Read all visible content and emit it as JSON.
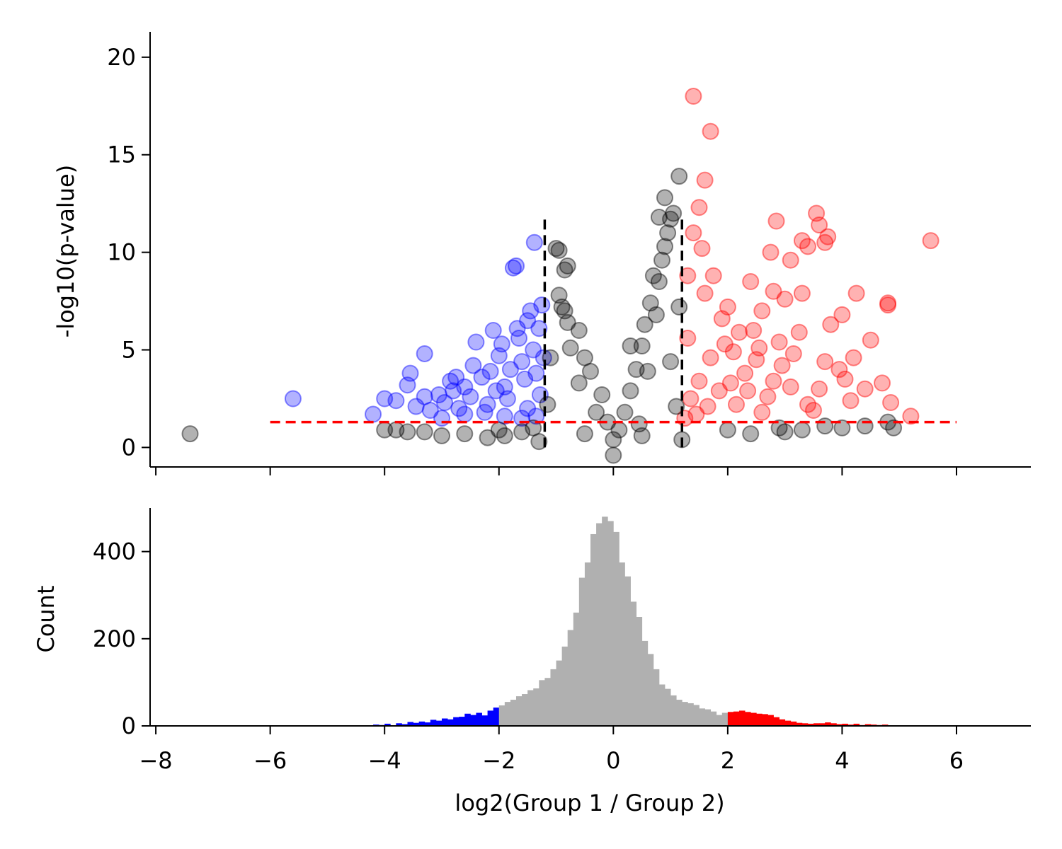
{
  "chart_data": [
    {
      "type": "scatter",
      "title": "",
      "xlabel": "",
      "ylabel": "-log10(p-value)",
      "xlim": [
        -8.1,
        7.3
      ],
      "ylim": [
        -1,
        21.3
      ],
      "x_ticks": [
        -8,
        -6,
        -4,
        -2,
        0,
        2,
        4,
        6
      ],
      "y_ticks": [
        0,
        5,
        10,
        15,
        20
      ],
      "y_tick_labels": [
        "0",
        "5",
        "10",
        "15",
        "20"
      ],
      "grid": false,
      "point_alpha": 0.3,
      "thresholds": {
        "fold_change_lines_x": [
          -1.2,
          1.2
        ],
        "fold_change_line_ymax": 11.7,
        "fold_change_line_color": "#000000",
        "pvalue_line_y": 1.3,
        "pvalue_line_xrange": [
          -6,
          6
        ],
        "pvalue_line_color": "#ff0000"
      },
      "series": [
        {
          "group": "down",
          "color": "#0000ff",
          "points": [
            [
              -5.6,
              2.5
            ],
            [
              -4.2,
              1.7
            ],
            [
              -4.0,
              2.5
            ],
            [
              -3.8,
              2.4
            ],
            [
              -3.6,
              3.2
            ],
            [
              -3.55,
              3.8
            ],
            [
              -3.45,
              2.1
            ],
            [
              -3.3,
              4.8
            ],
            [
              -3.2,
              1.9
            ],
            [
              -3.05,
              2.7
            ],
            [
              -2.95,
              2.3
            ],
            [
              -2.85,
              3.4
            ],
            [
              -2.8,
              2.9
            ],
            [
              -2.7,
              2.0
            ],
            [
              -2.6,
              3.1
            ],
            [
              -2.5,
              2.6
            ],
            [
              -2.45,
              4.2
            ],
            [
              -2.4,
              5.4
            ],
            [
              -2.3,
              3.6
            ],
            [
              -2.2,
              2.2
            ],
            [
              -2.15,
              3.9
            ],
            [
              -2.1,
              6.0
            ],
            [
              -2.0,
              4.7
            ],
            [
              -1.95,
              5.3
            ],
            [
              -1.9,
              3.1
            ],
            [
              -1.85,
              2.5
            ],
            [
              -1.8,
              4.0
            ],
            [
              -1.75,
              9.2
            ],
            [
              -1.7,
              9.3
            ],
            [
              -1.68,
              6.1
            ],
            [
              -1.65,
              5.6
            ],
            [
              -1.6,
              4.4
            ],
            [
              -1.55,
              3.5
            ],
            [
              -1.5,
              6.5
            ],
            [
              -1.5,
              2.0
            ],
            [
              -1.45,
              7.0
            ],
            [
              -1.4,
              5.0
            ],
            [
              -1.38,
              10.5
            ],
            [
              -1.35,
              3.8
            ],
            [
              -1.3,
              6.1
            ],
            [
              -1.28,
              2.7
            ],
            [
              -1.25,
              7.3
            ],
            [
              -1.22,
              4.6
            ],
            [
              -1.9,
              1.6
            ],
            [
              -2.6,
              1.7
            ],
            [
              -3.0,
              1.5
            ],
            [
              -2.25,
              1.8
            ],
            [
              -1.6,
              1.5
            ],
            [
              -2.75,
              3.6
            ],
            [
              -3.3,
              2.6
            ],
            [
              -2.05,
              2.9
            ],
            [
              -1.35,
              1.6
            ]
          ]
        },
        {
          "group": "up",
          "color": "#ff0000",
          "points": [
            [
              1.4,
              18.0
            ],
            [
              1.7,
              16.2
            ],
            [
              1.6,
              13.7
            ],
            [
              1.5,
              12.3
            ],
            [
              1.4,
              11.0
            ],
            [
              1.55,
              10.2
            ],
            [
              1.3,
              8.8
            ],
            [
              1.75,
              8.8
            ],
            [
              1.6,
              7.9
            ],
            [
              1.9,
              6.6
            ],
            [
              2.0,
              7.2
            ],
            [
              2.2,
              5.9
            ],
            [
              2.4,
              8.5
            ],
            [
              2.6,
              7.0
            ],
            [
              2.75,
              10.0
            ],
            [
              2.85,
              11.6
            ],
            [
              2.8,
              8.0
            ],
            [
              3.0,
              7.6
            ],
            [
              3.1,
              9.6
            ],
            [
              3.3,
              10.6
            ],
            [
              3.4,
              10.3
            ],
            [
              3.55,
              12.0
            ],
            [
              3.6,
              11.4
            ],
            [
              3.7,
              10.5
            ],
            [
              3.75,
              10.8
            ],
            [
              3.3,
              7.9
            ],
            [
              3.8,
              6.3
            ],
            [
              4.0,
              6.8
            ],
            [
              4.25,
              7.9
            ],
            [
              4.8,
              7.3
            ],
            [
              4.8,
              7.4
            ],
            [
              5.55,
              10.6
            ],
            [
              4.5,
              5.5
            ],
            [
              4.2,
              4.6
            ],
            [
              3.95,
              4.0
            ],
            [
              4.4,
              3.0
            ],
            [
              4.7,
              3.3
            ],
            [
              4.85,
              2.3
            ],
            [
              5.2,
              1.6
            ],
            [
              3.6,
              3.0
            ],
            [
              3.4,
              2.2
            ],
            [
              3.1,
              3.1
            ],
            [
              2.95,
              4.2
            ],
            [
              2.8,
              3.4
            ],
            [
              2.7,
              2.6
            ],
            [
              2.5,
              4.5
            ],
            [
              2.3,
              3.8
            ],
            [
              2.1,
              4.9
            ],
            [
              1.85,
              2.9
            ],
            [
              1.7,
              4.6
            ],
            [
              1.5,
              3.4
            ],
            [
              1.35,
              2.5
            ],
            [
              1.3,
              5.6
            ],
            [
              2.15,
              2.2
            ],
            [
              2.9,
              5.4
            ],
            [
              3.25,
              5.9
            ],
            [
              3.7,
              4.4
            ],
            [
              4.05,
              3.5
            ],
            [
              2.45,
              6.0
            ],
            [
              1.95,
              5.3
            ],
            [
              3.5,
              1.9
            ],
            [
              4.15,
              2.4
            ],
            [
              2.6,
              1.8
            ],
            [
              1.45,
              1.7
            ],
            [
              2.35,
              2.9
            ],
            [
              3.15,
              4.8
            ],
            [
              1.65,
              2.1
            ],
            [
              2.05,
              3.3
            ],
            [
              2.55,
              5.1
            ],
            [
              1.25,
              1.5
            ]
          ]
        },
        {
          "group": "ns",
          "color": "#000000",
          "points": [
            [
              -7.4,
              0.7
            ],
            [
              -4.0,
              0.9
            ],
            [
              -3.8,
              0.9
            ],
            [
              -3.6,
              0.8
            ],
            [
              -3.3,
              0.8
            ],
            [
              -3.0,
              0.6
            ],
            [
              -2.6,
              0.7
            ],
            [
              -2.2,
              0.5
            ],
            [
              -1.9,
              0.6
            ],
            [
              -1.6,
              0.8
            ],
            [
              -1.4,
              1.0
            ],
            [
              -1.3,
              0.3
            ],
            [
              2.0,
              0.9
            ],
            [
              2.4,
              0.7
            ],
            [
              2.9,
              1.0
            ],
            [
              3.3,
              0.9
            ],
            [
              3.7,
              1.1
            ],
            [
              4.0,
              1.0
            ],
            [
              4.4,
              1.1
            ],
            [
              4.8,
              1.3
            ],
            [
              4.9,
              1.0
            ],
            [
              -1.0,
              10.2
            ],
            [
              -0.95,
              10.1
            ],
            [
              -0.85,
              9.1
            ],
            [
              -0.8,
              9.3
            ],
            [
              -0.95,
              7.8
            ],
            [
              -0.9,
              7.2
            ],
            [
              -0.85,
              7.0
            ],
            [
              -0.8,
              6.4
            ],
            [
              -0.6,
              6.0
            ],
            [
              -0.5,
              4.6
            ],
            [
              -0.4,
              3.9
            ],
            [
              -0.2,
              2.7
            ],
            [
              -0.1,
              1.3
            ],
            [
              1.15,
              13.9
            ],
            [
              0.9,
              12.8
            ],
            [
              1.05,
              12.0
            ],
            [
              1.0,
              11.7
            ],
            [
              0.8,
              11.8
            ],
            [
              0.95,
              11.0
            ],
            [
              0.9,
              10.3
            ],
            [
              0.85,
              9.6
            ],
            [
              0.8,
              8.5
            ],
            [
              0.7,
              8.8
            ],
            [
              0.65,
              7.4
            ],
            [
              0.55,
              6.3
            ],
            [
              0.5,
              5.2
            ],
            [
              0.4,
              4.0
            ],
            [
              0.3,
              2.9
            ],
            [
              0.2,
              1.8
            ],
            [
              0.1,
              0.9
            ],
            [
              0.6,
              3.9
            ],
            [
              0.75,
              6.8
            ],
            [
              1.0,
              4.4
            ],
            [
              1.1,
              2.1
            ],
            [
              0.3,
              5.2
            ],
            [
              -0.6,
              3.3
            ],
            [
              -0.3,
              1.8
            ],
            [
              0.0,
              -0.4
            ],
            [
              -1.1,
              4.6
            ],
            [
              -1.15,
              2.2
            ],
            [
              0.0,
              0.4
            ],
            [
              0.5,
              0.6
            ],
            [
              -0.5,
              0.7
            ],
            [
              1.2,
              0.4
            ],
            [
              -2.0,
              0.9
            ],
            [
              3.0,
              0.8
            ],
            [
              -0.75,
              5.1
            ],
            [
              0.45,
              1.2
            ],
            [
              1.15,
              7.2
            ]
          ]
        }
      ]
    },
    {
      "type": "bar",
      "title": "",
      "xlabel": "log2(Group 1 / Group 2)",
      "ylabel": "Count",
      "xlim": [
        -8.1,
        7.3
      ],
      "ylim": [
        0,
        500
      ],
      "x_ticks": [
        -8,
        -6,
        -4,
        -2,
        0,
        2,
        4,
        6
      ],
      "x_tick_labels": [
        "−8",
        "−6",
        "−4",
        "−2",
        "0",
        "2",
        "4",
        "6"
      ],
      "y_ticks": [
        0,
        200,
        400
      ],
      "y_tick_labels": [
        "0",
        "200",
        "400"
      ],
      "grid": false,
      "bin_start": -4.2,
      "bin_width": 0.1,
      "colors": {
        "down": "#0000ff",
        "ns": "#b0b0b0",
        "up": "#ff0000"
      },
      "class_thresholds": [
        -2,
        2
      ],
      "values": [
        3,
        2,
        5,
        0,
        6,
        4,
        9,
        7,
        10,
        8,
        14,
        12,
        17,
        15,
        20,
        21,
        28,
        25,
        30,
        24,
        35,
        42,
        47,
        55,
        60,
        68,
        73,
        82,
        86,
        105,
        110,
        130,
        150,
        182,
        220,
        260,
        340,
        375,
        440,
        465,
        480,
        470,
        445,
        375,
        343,
        285,
        250,
        195,
        165,
        130,
        95,
        85,
        70,
        60,
        55,
        52,
        48,
        40,
        38,
        33,
        25,
        30,
        32,
        33,
        35,
        32,
        30,
        28,
        27,
        25,
        20,
        15,
        12,
        10,
        7,
        6,
        5,
        6,
        6,
        8,
        6,
        4,
        5,
        3,
        5,
        2,
        4,
        3,
        2,
        3
      ]
    }
  ]
}
